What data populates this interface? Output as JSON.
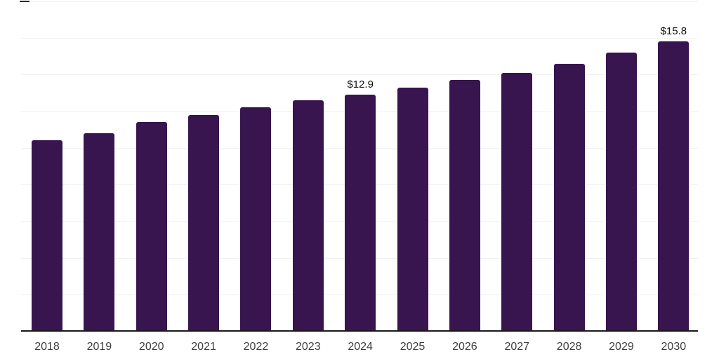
{
  "chart_data": {
    "type": "bar",
    "title": "",
    "xlabel": "",
    "ylabel": "",
    "categories": [
      "2018",
      "2019",
      "2020",
      "2021",
      "2022",
      "2023",
      "2024",
      "2025",
      "2026",
      "2027",
      "2028",
      "2029",
      "2030"
    ],
    "values": [
      10.4,
      10.8,
      11.4,
      11.8,
      12.2,
      12.6,
      12.9,
      13.3,
      13.7,
      14.1,
      14.6,
      15.2,
      15.8
    ],
    "point_labels": {
      "2024": "$12.9",
      "2030": "$15.8"
    },
    "ylim": [
      0,
      18
    ],
    "grid": true,
    "grid_step": 2,
    "legend": false,
    "colors": {
      "bar": "#38154F",
      "axis": "#1A1A1A",
      "gridline": "#F0F0F0",
      "top_dash": "#2A2A2A",
      "tick_label": "#3D3D3D",
      "value_label": "#101010",
      "background": "#FFFFFF"
    }
  }
}
